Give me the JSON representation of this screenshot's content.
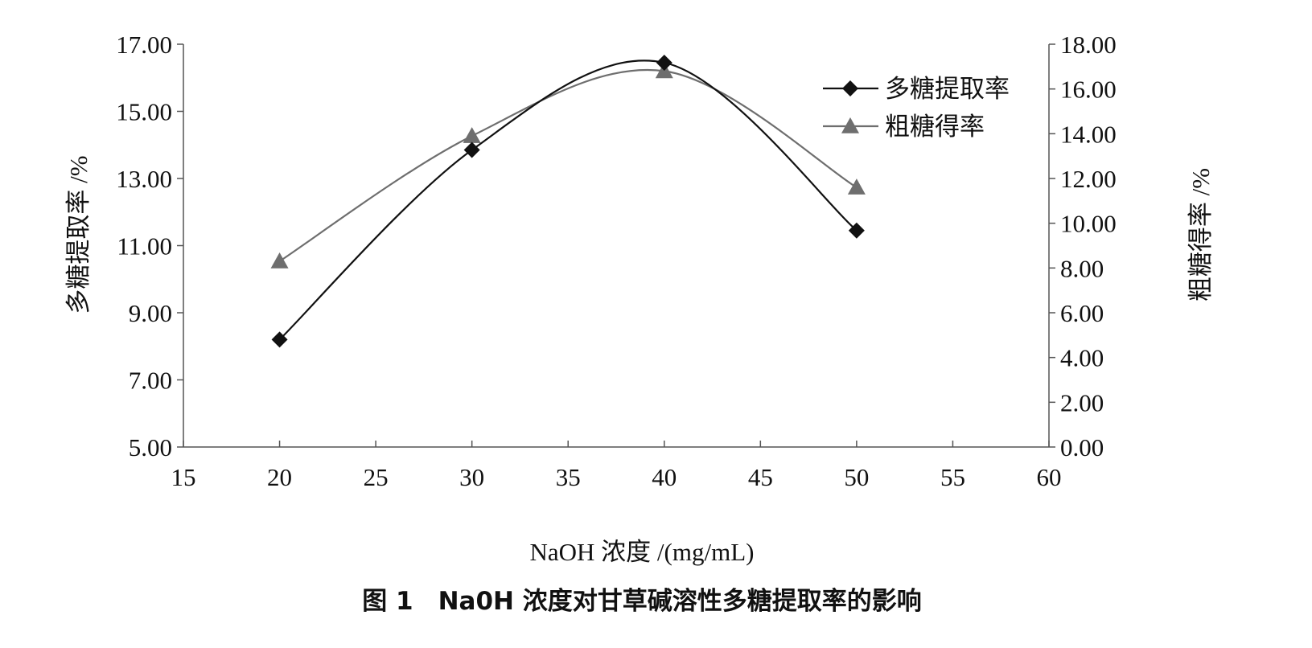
{
  "chart_data": {
    "type": "line",
    "caption": "图 1　Na0H 浓度对甘草碱溶性多糖提取率的影响",
    "xlabel": "NaOH 浓度 /(mg/mL)",
    "ylabel": "多糖提取率 /%",
    "y2label": "粗糖得率 /%",
    "xlim": [
      15,
      60
    ],
    "xticks": [
      "15",
      "20",
      "25",
      "30",
      "35",
      "40",
      "45",
      "50",
      "55",
      "60"
    ],
    "ylim": [
      5,
      17
    ],
    "yticks": [
      "5.00",
      "7.00",
      "9.00",
      "11.00",
      "13.00",
      "15.00",
      "17.00"
    ],
    "y2lim": [
      0,
      18
    ],
    "y2ticks": [
      "0.00",
      "2.00",
      "4.00",
      "6.00",
      "8.00",
      "10.00",
      "12.00",
      "14.00",
      "16.00",
      "18.00"
    ],
    "legend_position": "top-right",
    "grid": false,
    "smooth": true,
    "series": [
      {
        "name": "多糖提取率",
        "axis": "left",
        "marker": "diamond",
        "color": "#111111",
        "x": [
          20,
          30,
          40,
          50
        ],
        "y": [
          8.2,
          13.85,
          16.45,
          11.45
        ]
      },
      {
        "name": "粗糖得率",
        "axis": "right",
        "marker": "triangle",
        "color": "#6e6e6e",
        "x": [
          20,
          30,
          40,
          50
        ],
        "y": [
          8.3,
          13.9,
          16.8,
          11.6
        ]
      }
    ]
  }
}
